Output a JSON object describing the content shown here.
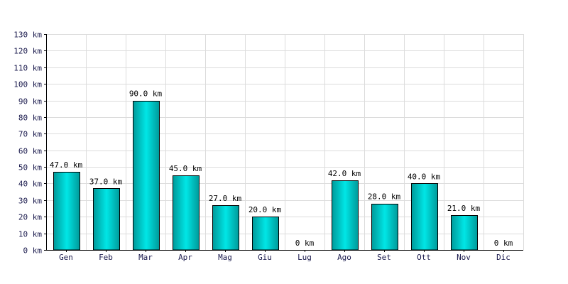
{
  "chart_data": {
    "type": "bar",
    "categories": [
      "Gen",
      "Feb",
      "Mar",
      "Apr",
      "Mag",
      "Giu",
      "Lug",
      "Ago",
      "Set",
      "Ott",
      "Nov",
      "Dic"
    ],
    "values": [
      47.0,
      37.0,
      90.0,
      45.0,
      27.0,
      20.0,
      0,
      42.0,
      28.0,
      40.0,
      21.0,
      0
    ],
    "data_labels": [
      "47.0 km",
      "37.0 km",
      "90.0 km",
      "45.0 km",
      "27.0 km",
      "20.0 km",
      "0 km",
      "42.0 km",
      "28.0 km",
      "40.0 km",
      "21.0 km",
      "0 km"
    ],
    "y_ticks": [
      0,
      10,
      20,
      30,
      40,
      50,
      60,
      70,
      80,
      90,
      100,
      110,
      120,
      130
    ],
    "y_tick_labels": [
      "0 km",
      "10 km",
      "20 km",
      "30 km",
      "40 km",
      "50 km",
      "60 km",
      "70 km",
      "80 km",
      "90 km",
      "100 km",
      "110 km",
      "120 km",
      "130 km"
    ],
    "ylim": [
      0,
      130
    ],
    "title": "",
    "xlabel": "",
    "ylabel": "",
    "grid": true,
    "legend": "none",
    "colors": {
      "bar_fill_edge": "#009999",
      "bar_fill_center": "#00e6e6",
      "bar_stroke": "#000000",
      "grid": "#dcdcdc",
      "axis": "#000000",
      "tick_text": "#1a1a4d"
    }
  }
}
